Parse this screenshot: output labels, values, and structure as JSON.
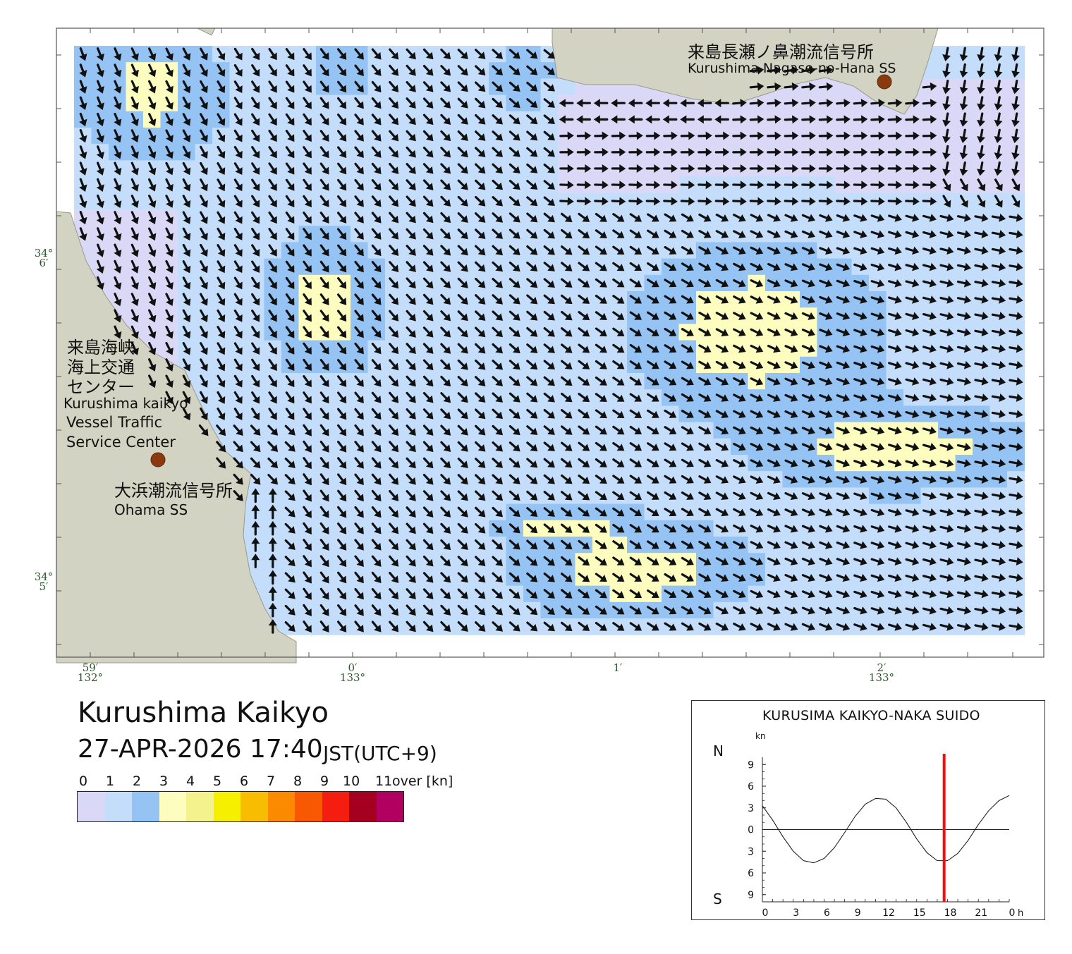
{
  "title": "Kurushima Kaikyo",
  "datetime": "27-APR-2026 17:40",
  "timezone": "JST(UTC+9)",
  "stations": {
    "nagase_ja": "来島長瀬ノ鼻潮流信号所",
    "nagase_en": "Kurushima Nagase-no-Hana SS",
    "vts_ja_1": "来島海峡",
    "vts_ja_2": "海上交通",
    "vts_ja_3": "センター",
    "vts_en_1": "Kurushima kaikyo",
    "vts_en_2": "Vessel Traffic",
    "vts_en_3": "Service Center",
    "ohama_ja": "大浜潮流信号所",
    "ohama_en": "Ohama SS",
    "marker_color": "#8B3A0F"
  },
  "axis": {
    "lat_labels": [
      {
        "deg": "34",
        "min": "6′"
      },
      {
        "deg": "34",
        "min": "5′"
      }
    ],
    "lon_labels": [
      {
        "min": "59′",
        "deg": "132°"
      },
      {
        "min": "0′",
        "deg": "133°"
      },
      {
        "min": "1′",
        "deg": ""
      },
      {
        "min": "2′",
        "deg": "133°"
      }
    ]
  },
  "legend": {
    "labels": [
      "0",
      "1",
      "2",
      "3",
      "4",
      "5",
      "6",
      "7",
      "8",
      "9",
      "10",
      "11",
      "over [kn]"
    ],
    "colors": [
      "#d9d9f7",
      "#c3ddfb",
      "#95c3f4",
      "#fdfdc0",
      "#f4f28c",
      "#f6f000",
      "#f8bc00",
      "#fb8a00",
      "#f85800",
      "#f51c10",
      "#a50020",
      "#b10060"
    ]
  },
  "map_colors": {
    "land": "#d3d3c3",
    "land_edge": "#9a9a8a",
    "frame": "#555555",
    "arrow": "#111111"
  },
  "inset": {
    "title": "KURUSIMA KAIKYO-NAKA SUIDO",
    "unit": "kn",
    "north": "N",
    "south": "S",
    "y_labels": [
      "9",
      "6",
      "3",
      "0",
      "3",
      "6",
      "9"
    ],
    "x_labels": [
      "0",
      "3",
      "6",
      "9",
      "12",
      "15",
      "18",
      "21",
      "0"
    ],
    "x_unit": "h",
    "marker_color": "#ee1111"
  },
  "chart_data": {
    "type": "line",
    "title": "KURUSIMA KAIKYO-NAKA SUIDO",
    "xlabel": "h",
    "ylabel": "kn",
    "ylim": [
      -10,
      10
    ],
    "xlim": [
      0,
      24
    ],
    "series": [
      {
        "name": "",
        "x": [
          0,
          1,
          2,
          3,
          4,
          5,
          6,
          7,
          8,
          9,
          10,
          11,
          12,
          13,
          14,
          15,
          16,
          17,
          18,
          19,
          20,
          21,
          22,
          23,
          24
        ],
        "y": [
          3.3,
          1.3,
          -1.0,
          -3.0,
          -4.3,
          -4.6,
          -4.0,
          -2.5,
          -0.4,
          1.8,
          3.5,
          4.3,
          4.2,
          3.0,
          1.0,
          -1.3,
          -3.2,
          -4.3,
          -4.3,
          -3.3,
          -1.5,
          0.7,
          2.6,
          4.0,
          4.7
        ]
      }
    ],
    "current_time_h": 17.67
  }
}
